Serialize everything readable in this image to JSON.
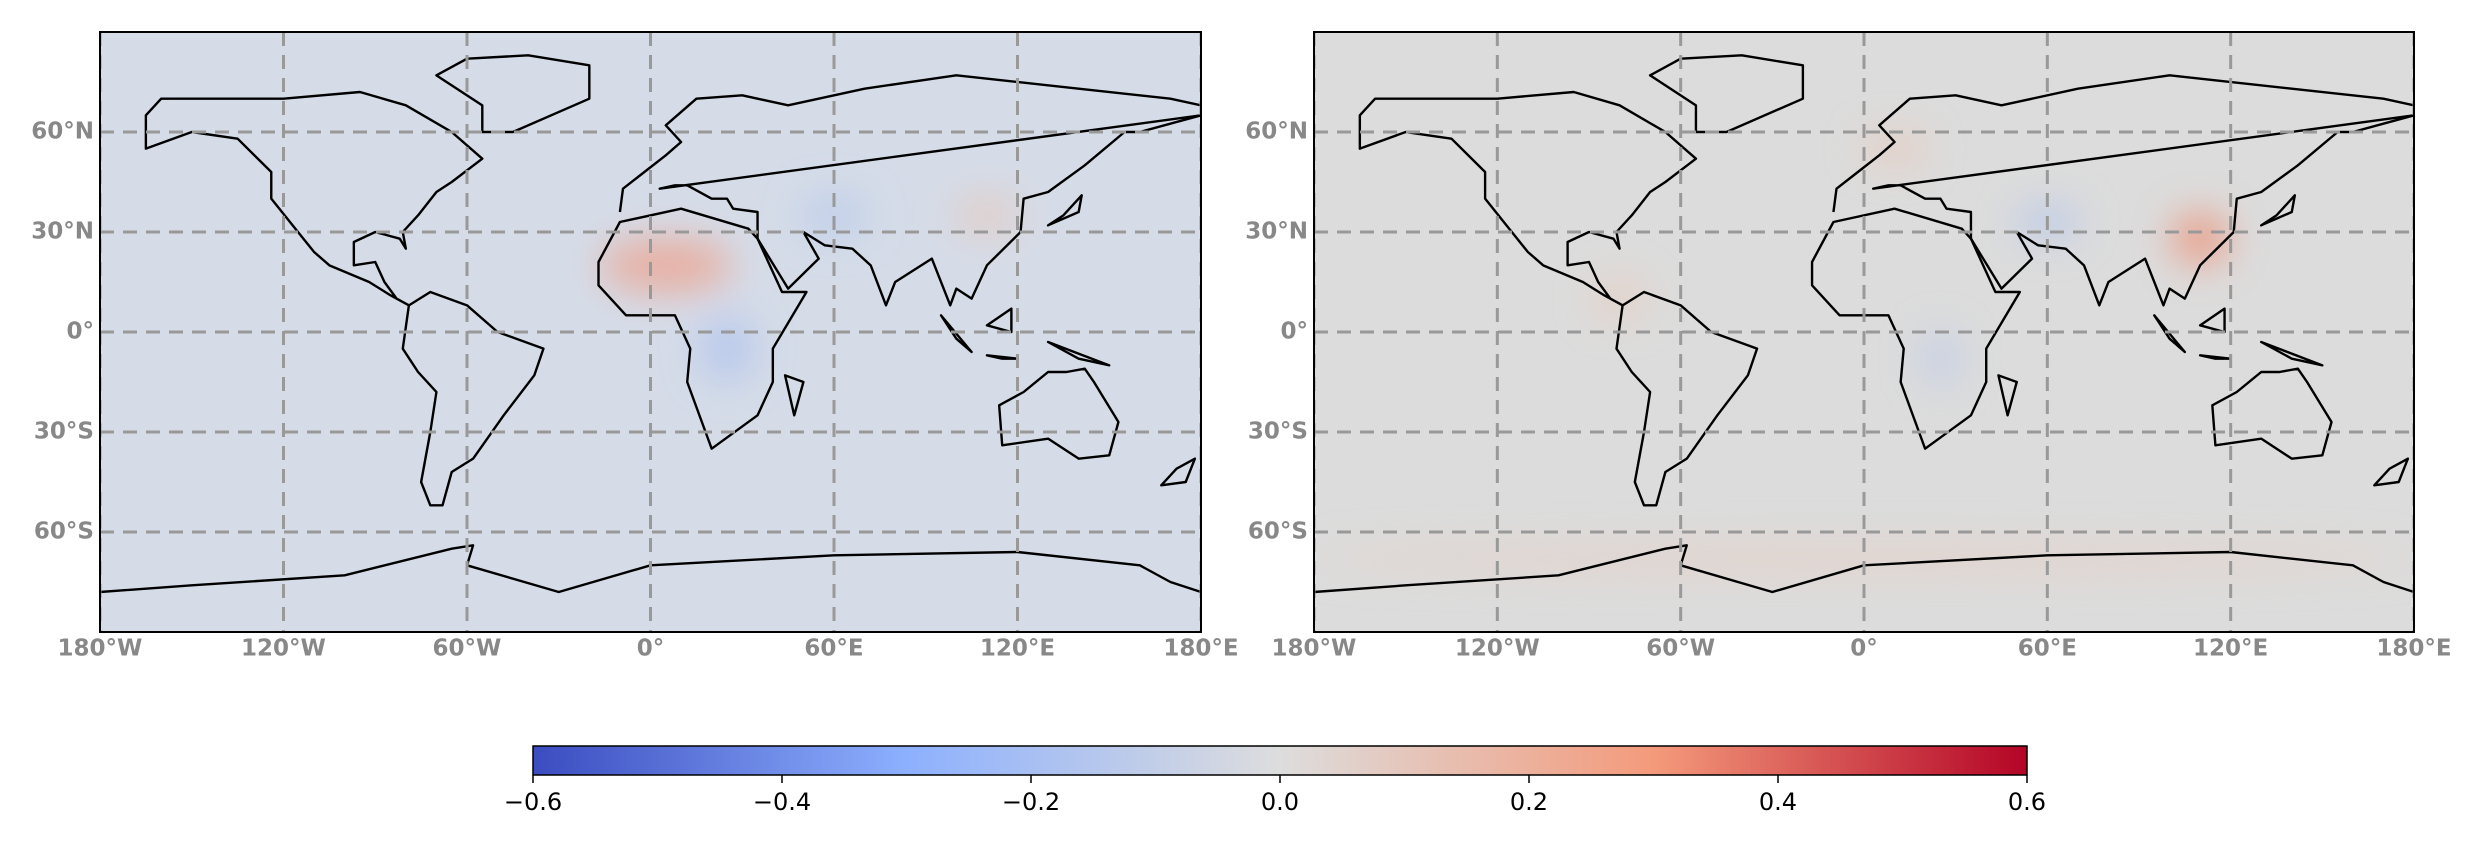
{
  "chart_data": [
    {
      "type": "map",
      "background": "#d5dce8",
      "grid": true,
      "xlim": [
        -180,
        180
      ],
      "ylim": [
        -90,
        90
      ],
      "xticks": [
        {
          "value": -180,
          "label": "180°W"
        },
        {
          "value": -120,
          "label": "120°W"
        },
        {
          "value": -60,
          "label": "60°W"
        },
        {
          "value": 0,
          "label": "0°"
        },
        {
          "value": 60,
          "label": "60°E"
        },
        {
          "value": 120,
          "label": "120°E"
        },
        {
          "value": 180,
          "label": "180°E"
        }
      ],
      "yticks": [
        {
          "value": 60,
          "label": "60°N"
        },
        {
          "value": 30,
          "label": "30°N"
        },
        {
          "value": 0,
          "label": "0°"
        },
        {
          "value": -30,
          "label": "30°S"
        },
        {
          "value": -60,
          "label": "60°S"
        }
      ]
    },
    {
      "type": "map",
      "background": "#dcdcdc",
      "grid": true,
      "xlim": [
        -180,
        180
      ],
      "ylim": [
        -90,
        90
      ],
      "xticks": [
        {
          "value": -180,
          "label": "180°W"
        },
        {
          "value": -120,
          "label": "120°W"
        },
        {
          "value": -60,
          "label": "60°W"
        },
        {
          "value": 0,
          "label": "0°"
        },
        {
          "value": 60,
          "label": "60°E"
        },
        {
          "value": 120,
          "label": "120°E"
        },
        {
          "value": 180,
          "label": "180°E"
        }
      ],
      "yticks": [
        {
          "value": 60,
          "label": "60°N"
        },
        {
          "value": 30,
          "label": "30°N"
        },
        {
          "value": 0,
          "label": "0°"
        },
        {
          "value": -30,
          "label": "30°S"
        },
        {
          "value": -60,
          "label": "60°S"
        }
      ]
    }
  ],
  "colorbar": {
    "colors": [
      "#3b4cc0",
      "#8db0fe",
      "#dddddd",
      "#f49a7b",
      "#b40426"
    ],
    "lim": [
      -0.6,
      0.6
    ],
    "ticks": [
      {
        "value": -0.6,
        "label": "−0.6"
      },
      {
        "value": -0.4,
        "label": "−0.4"
      },
      {
        "value": -0.2,
        "label": "−0.2"
      },
      {
        "value": 0,
        "label": "0.0"
      },
      0.2,
      0.4,
      0.6
    ]
  }
}
